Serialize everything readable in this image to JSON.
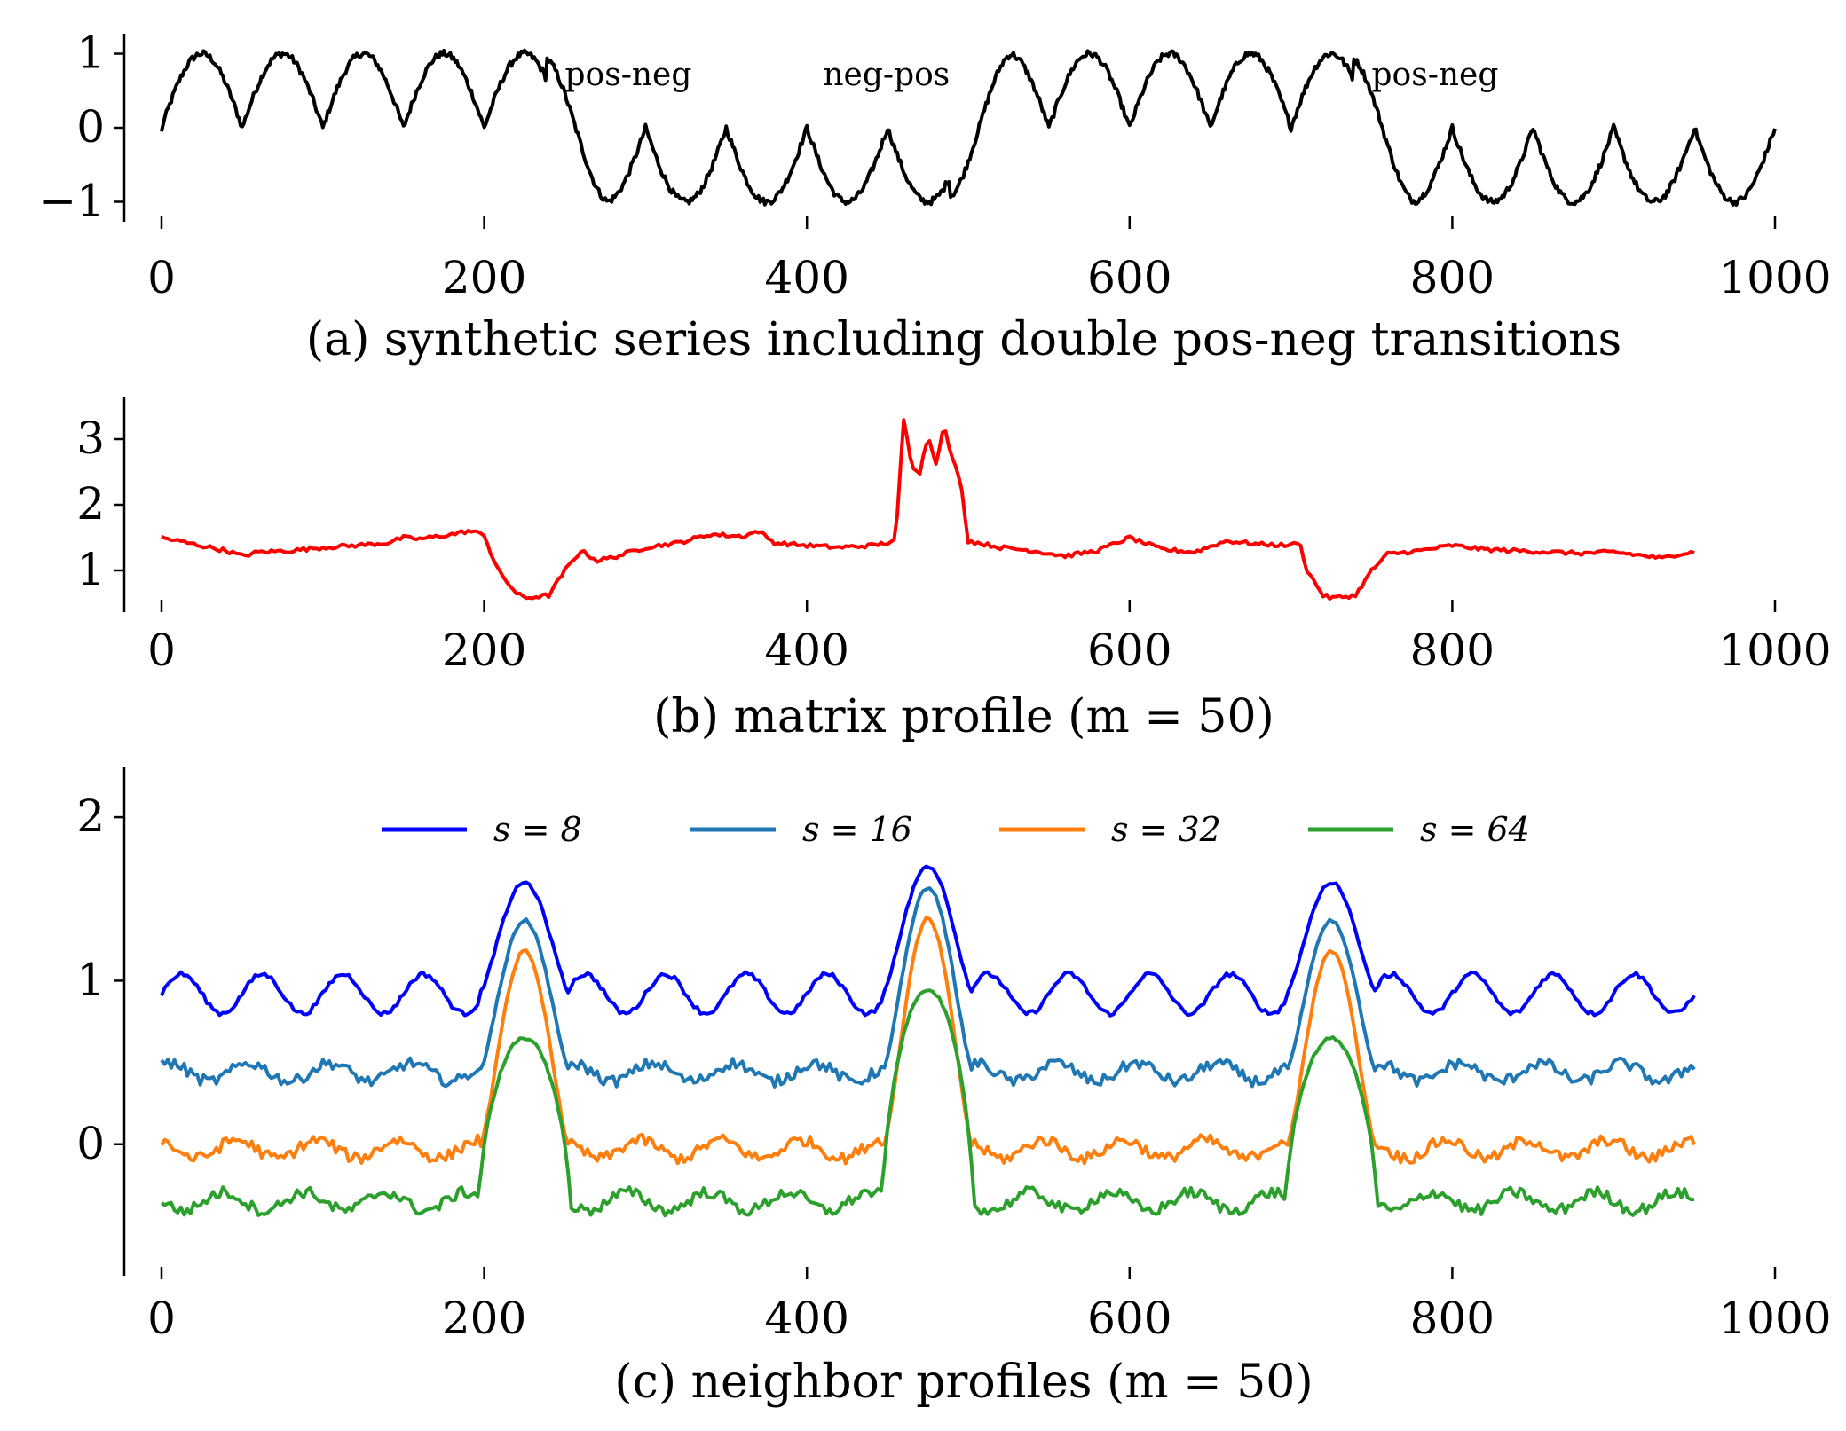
{
  "chart_data": [
    {
      "id": "a",
      "type": "line",
      "caption": "(a) synthetic series including double pos-neg transitions",
      "xlim": [
        0,
        1000
      ],
      "ylim": [
        -1.15,
        1.15
      ],
      "xticks": [
        0,
        200,
        400,
        600,
        800,
        1000
      ],
      "xtick_labels": [
        "0",
        "200",
        "400",
        "600",
        "800",
        "1000"
      ],
      "yticks": [
        1,
        0,
        -1
      ],
      "ytick_labels": [
        "1",
        "0",
        "−1"
      ],
      "annotations": [
        {
          "text": "pos-neg",
          "x": 250,
          "y": 0.62
        },
        {
          "text": "neg-pos",
          "x": 410,
          "y": 0.62
        },
        {
          "text": "pos-neg",
          "x": 750,
          "y": 0.62
        }
      ],
      "series": [
        {
          "color": "#000000",
          "segments": [
            {
              "from": 0,
              "to": 250,
              "regime": "pos",
              "period": 50
            },
            {
              "from": 250,
              "to": 500,
              "regime": "neg",
              "period": 50
            },
            {
              "from": 500,
              "to": 750,
              "regime": "pos",
              "period": 50
            },
            {
              "from": 750,
              "to": 1000,
              "regime": "neg",
              "period": 50
            }
          ]
        }
      ]
    },
    {
      "id": "b",
      "type": "line",
      "caption": "(b) matrix profile (m = 50)",
      "xlim": [
        0,
        1000
      ],
      "ylim": [
        0.5,
        3.5
      ],
      "xticks": [
        0,
        200,
        400,
        600,
        800,
        1000
      ],
      "xtick_labels": [
        "0",
        "200",
        "400",
        "600",
        "800",
        "1000"
      ],
      "yticks": [
        3,
        2,
        1
      ],
      "ytick_labels": [
        "3",
        "2",
        "1"
      ],
      "series": [
        {
          "color": "#ff0000",
          "x": [
            0,
            10,
            20,
            30,
            40,
            50,
            60,
            80,
            100,
            120,
            140,
            150,
            160,
            180,
            190,
            200,
            205,
            210,
            220,
            225,
            240,
            250,
            260,
            270,
            280,
            300,
            320,
            340,
            360,
            370,
            380,
            400,
            420,
            440,
            450,
            455,
            460,
            465,
            470,
            475,
            480,
            485,
            490,
            495,
            500,
            520,
            540,
            560,
            580,
            600,
            620,
            640,
            660,
            680,
            700,
            705,
            710,
            720,
            725,
            740,
            750,
            760,
            780,
            800,
            820,
            840,
            860,
            880,
            900,
            920,
            930,
            940,
            950
          ],
          "y": [
            1.5,
            1.45,
            1.4,
            1.35,
            1.3,
            1.22,
            1.28,
            1.3,
            1.35,
            1.38,
            1.42,
            1.5,
            1.48,
            1.55,
            1.6,
            1.55,
            1.2,
            0.95,
            0.65,
            0.58,
            0.62,
            1.0,
            1.3,
            1.15,
            1.2,
            1.35,
            1.42,
            1.55,
            1.52,
            1.6,
            1.42,
            1.38,
            1.35,
            1.38,
            1.42,
            1.45,
            3.3,
            2.6,
            2.5,
            3.05,
            2.65,
            3.2,
            2.7,
            2.4,
            1.45,
            1.35,
            1.3,
            1.22,
            1.3,
            1.5,
            1.32,
            1.28,
            1.45,
            1.4,
            1.38,
            1.45,
            1.0,
            0.62,
            0.58,
            0.62,
            1.0,
            1.25,
            1.3,
            1.38,
            1.32,
            1.3,
            1.28,
            1.26,
            1.28,
            1.22,
            1.18,
            1.25,
            1.28
          ]
        }
      ]
    },
    {
      "id": "c",
      "type": "line",
      "caption": "(c) neighbor profiles (m = 50)",
      "xlim": [
        0,
        1000
      ],
      "ylim": [
        -0.75,
        2.25
      ],
      "xticks": [
        0,
        200,
        400,
        600,
        800,
        1000
      ],
      "xtick_labels": [
        "0",
        "200",
        "400",
        "600",
        "800",
        "1000"
      ],
      "yticks": [
        2,
        1,
        0
      ],
      "ytick_labels": [
        "2",
        "1",
        "0"
      ],
      "legend": {
        "placement": "top-center",
        "entries": [
          "s = 8",
          "s = 16",
          "s = 32",
          "s = 64"
        ]
      },
      "peak_centers": [
        225,
        475,
        725
      ],
      "series": [
        {
          "name": "s = 8",
          "color": "#0000ff",
          "baseline": 0.92,
          "amplitude": 0.12,
          "peaks": [
            1.6,
            1.7,
            1.6
          ]
        },
        {
          "name": "s = 16",
          "color": "#1f77b4",
          "baseline": 0.44,
          "amplitude": 0.07,
          "peaks": [
            1.37,
            1.57,
            1.37
          ]
        },
        {
          "name": "s = 32",
          "color": "#ff7f0e",
          "baseline": -0.03,
          "amplitude": 0.07,
          "peaks": [
            1.18,
            1.38,
            1.18
          ]
        },
        {
          "name": "s = 64",
          "color": "#2ca02c",
          "baseline": -0.35,
          "amplitude": 0.07,
          "peaks": [
            0.65,
            0.95,
            0.65
          ]
        }
      ]
    }
  ]
}
